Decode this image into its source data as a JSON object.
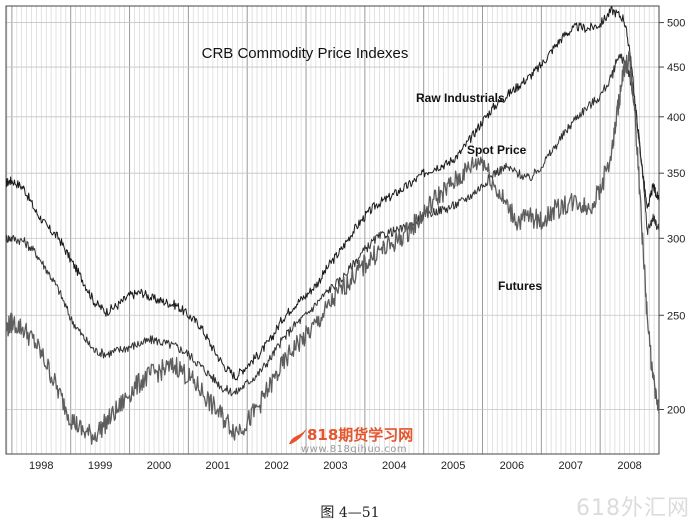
{
  "chart_data": {
    "type": "line",
    "title": "CRB Commodity Price Indexes",
    "y_scale": "log",
    "ylim": [
      180,
      520
    ],
    "y_ticks": [
      200,
      250,
      300,
      350,
      400,
      450,
      500
    ],
    "x_tick_labels": [
      "1998",
      "1999",
      "2000",
      "2001",
      "2002",
      "2003",
      "2004",
      "2005",
      "2006",
      "2007",
      "2008"
    ],
    "xlim": [
      1997.9,
      2009.0
    ],
    "grid": true,
    "series": [
      {
        "name": "Raw Industrials",
        "color": "#1a1a1a",
        "points": [
          [
            1997.9,
            342
          ],
          [
            1998.0,
            344
          ],
          [
            1998.2,
            338
          ],
          [
            1998.4,
            320
          ],
          [
            1998.6,
            308
          ],
          [
            1998.8,
            300
          ],
          [
            1999.0,
            285
          ],
          [
            1999.2,
            272
          ],
          [
            1999.4,
            258
          ],
          [
            1999.6,
            252
          ],
          [
            1999.8,
            256
          ],
          [
            2000.0,
            262
          ],
          [
            2000.2,
            264
          ],
          [
            2000.4,
            260
          ],
          [
            2000.6,
            258
          ],
          [
            2000.8,
            256
          ],
          [
            2001.0,
            250
          ],
          [
            2001.2,
            244
          ],
          [
            2001.4,
            232
          ],
          [
            2001.6,
            222
          ],
          [
            2001.8,
            216
          ],
          [
            2002.0,
            222
          ],
          [
            2002.2,
            228
          ],
          [
            2002.4,
            236
          ],
          [
            2002.6,
            248
          ],
          [
            2002.8,
            256
          ],
          [
            2003.0,
            262
          ],
          [
            2003.2,
            270
          ],
          [
            2003.4,
            282
          ],
          [
            2003.6,
            292
          ],
          [
            2003.8,
            305
          ],
          [
            2004.0,
            316
          ],
          [
            2004.2,
            325
          ],
          [
            2004.4,
            330
          ],
          [
            2004.6,
            336
          ],
          [
            2004.8,
            342
          ],
          [
            2005.0,
            350
          ],
          [
            2005.2,
            355
          ],
          [
            2005.4,
            358
          ],
          [
            2005.6,
            366
          ],
          [
            2005.8,
            380
          ],
          [
            2006.0,
            396
          ],
          [
            2006.2,
            410
          ],
          [
            2006.4,
            420
          ],
          [
            2006.6,
            430
          ],
          [
            2006.8,
            440
          ],
          [
            2007.0,
            452
          ],
          [
            2007.2,
            470
          ],
          [
            2007.4,
            486
          ],
          [
            2007.6,
            495
          ],
          [
            2007.8,
            493
          ],
          [
            2008.0,
            498
          ],
          [
            2008.2,
            515
          ],
          [
            2008.4,
            505
          ],
          [
            2008.5,
            470
          ],
          [
            2008.6,
            410
          ],
          [
            2008.7,
            360
          ],
          [
            2008.8,
            320
          ],
          [
            2008.9,
            340
          ],
          [
            2009.0,
            328
          ]
        ]
      },
      {
        "name": "Spot Price",
        "color": "#333333",
        "points": [
          [
            1997.9,
            300
          ],
          [
            1998.0,
            300
          ],
          [
            1998.2,
            298
          ],
          [
            1998.4,
            290
          ],
          [
            1998.6,
            278
          ],
          [
            1998.8,
            265
          ],
          [
            1999.0,
            248
          ],
          [
            1999.2,
            238
          ],
          [
            1999.4,
            230
          ],
          [
            1999.6,
            228
          ],
          [
            1999.8,
            230
          ],
          [
            2000.0,
            232
          ],
          [
            2000.2,
            234
          ],
          [
            2000.4,
            236
          ],
          [
            2000.6,
            234
          ],
          [
            2000.8,
            232
          ],
          [
            2001.0,
            228
          ],
          [
            2001.2,
            222
          ],
          [
            2001.4,
            216
          ],
          [
            2001.6,
            210
          ],
          [
            2001.8,
            208
          ],
          [
            2002.0,
            213
          ],
          [
            2002.2,
            218
          ],
          [
            2002.4,
            226
          ],
          [
            2002.6,
            236
          ],
          [
            2002.8,
            244
          ],
          [
            2003.0,
            250
          ],
          [
            2003.2,
            258
          ],
          [
            2003.4,
            266
          ],
          [
            2003.6,
            272
          ],
          [
            2003.8,
            282
          ],
          [
            2004.0,
            292
          ],
          [
            2004.2,
            300
          ],
          [
            2004.4,
            304
          ],
          [
            2004.6,
            306
          ],
          [
            2004.8,
            310
          ],
          [
            2005.0,
            316
          ],
          [
            2005.2,
            320
          ],
          [
            2005.4,
            322
          ],
          [
            2005.6,
            326
          ],
          [
            2005.8,
            332
          ],
          [
            2006.0,
            340
          ],
          [
            2006.2,
            350
          ],
          [
            2006.4,
            355
          ],
          [
            2006.6,
            350
          ],
          [
            2006.8,
            345
          ],
          [
            2007.0,
            356
          ],
          [
            2007.2,
            370
          ],
          [
            2007.4,
            385
          ],
          [
            2007.6,
            400
          ],
          [
            2007.8,
            410
          ],
          [
            2008.0,
            420
          ],
          [
            2008.2,
            440
          ],
          [
            2008.3,
            462
          ],
          [
            2008.4,
            458
          ],
          [
            2008.5,
            440
          ],
          [
            2008.6,
            405
          ],
          [
            2008.7,
            360
          ],
          [
            2008.8,
            305
          ],
          [
            2008.9,
            315
          ],
          [
            2009.0,
            306
          ]
        ]
      },
      {
        "name": "Futures",
        "color": "#5e5e5e",
        "points": [
          [
            1997.9,
            242
          ],
          [
            1998.0,
            246
          ],
          [
            1998.2,
            242
          ],
          [
            1998.4,
            234
          ],
          [
            1998.6,
            222
          ],
          [
            1998.8,
            208
          ],
          [
            1999.0,
            196
          ],
          [
            1999.2,
            190
          ],
          [
            1999.4,
            188
          ],
          [
            1999.6,
            194
          ],
          [
            1999.8,
            200
          ],
          [
            2000.0,
            208
          ],
          [
            2000.2,
            214
          ],
          [
            2000.4,
            218
          ],
          [
            2000.6,
            220
          ],
          [
            2000.8,
            222
          ],
          [
            2001.0,
            216
          ],
          [
            2001.2,
            210
          ],
          [
            2001.4,
            202
          ],
          [
            2001.6,
            196
          ],
          [
            2001.8,
            190
          ],
          [
            2002.0,
            194
          ],
          [
            2002.2,
            202
          ],
          [
            2002.4,
            212
          ],
          [
            2002.6,
            222
          ],
          [
            2002.8,
            232
          ],
          [
            2003.0,
            238
          ],
          [
            2003.2,
            246
          ],
          [
            2003.4,
            256
          ],
          [
            2003.6,
            266
          ],
          [
            2003.8,
            274
          ],
          [
            2004.0,
            282
          ],
          [
            2004.2,
            290
          ],
          [
            2004.4,
            294
          ],
          [
            2004.6,
            300
          ],
          [
            2004.8,
            308
          ],
          [
            2005.0,
            318
          ],
          [
            2005.2,
            330
          ],
          [
            2005.4,
            338
          ],
          [
            2005.6,
            346
          ],
          [
            2005.8,
            356
          ],
          [
            2006.0,
            362
          ],
          [
            2006.2,
            340
          ],
          [
            2006.4,
            325
          ],
          [
            2006.6,
            312
          ],
          [
            2006.8,
            316
          ],
          [
            2007.0,
            312
          ],
          [
            2007.2,
            320
          ],
          [
            2007.4,
            325
          ],
          [
            2007.6,
            328
          ],
          [
            2007.8,
            322
          ],
          [
            2008.0,
            336
          ],
          [
            2008.2,
            368
          ],
          [
            2008.3,
            408
          ],
          [
            2008.4,
            445
          ],
          [
            2008.5,
            460
          ],
          [
            2008.6,
            395
          ],
          [
            2008.7,
            312
          ],
          [
            2008.8,
            248
          ],
          [
            2008.9,
            214
          ],
          [
            2009.0,
            198
          ]
        ]
      }
    ]
  },
  "logo": {
    "cn": "818期货学习网",
    "url": "www.818qihuo.com"
  },
  "caption": "图 4—51",
  "watermark": "618外汇网"
}
